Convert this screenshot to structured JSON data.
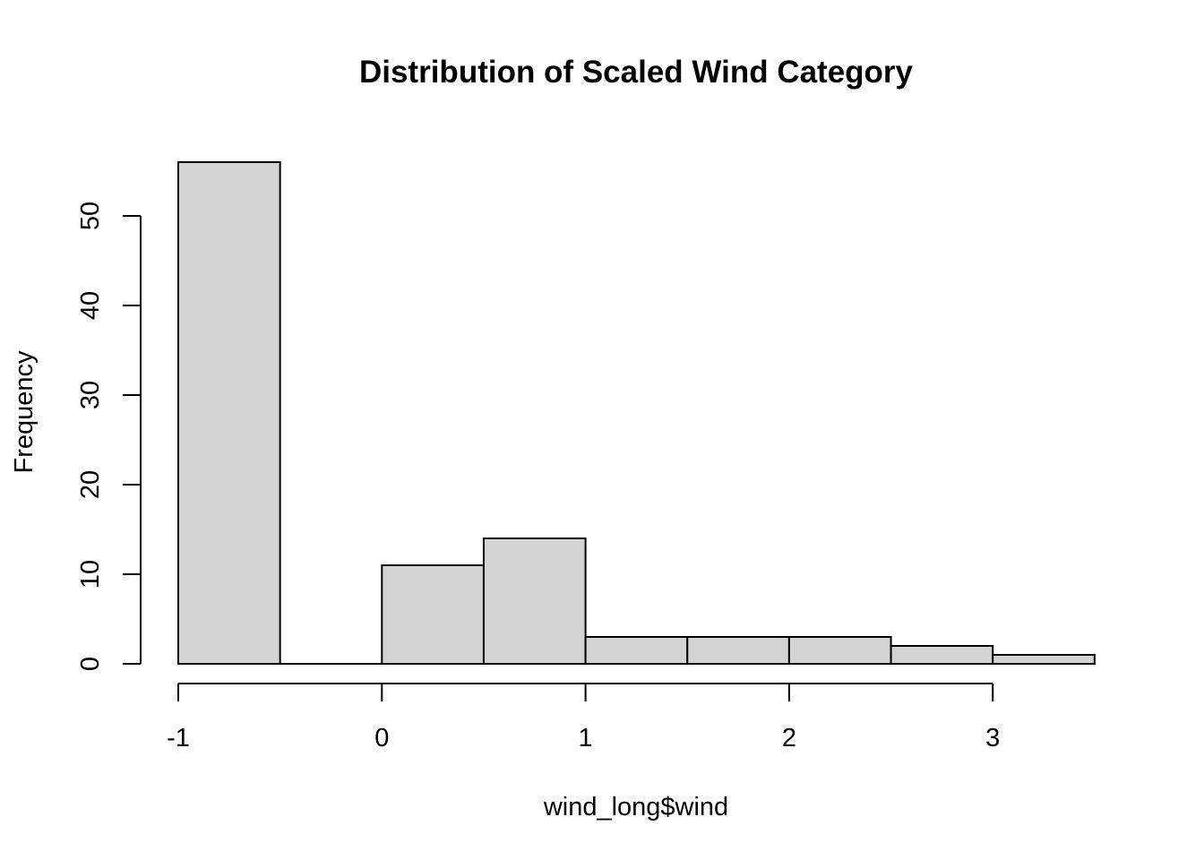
{
  "chart_data": {
    "type": "bar",
    "title": "Distribution of Scaled Wind Category",
    "xlabel": "wind_long$wind",
    "ylabel": "Frequency",
    "bins": [
      {
        "x0": -1.0,
        "x1": -0.5,
        "count": 56
      },
      {
        "x0": -0.5,
        "x1": 0.0,
        "count": 0
      },
      {
        "x0": 0.0,
        "x1": 0.5,
        "count": 11
      },
      {
        "x0": 0.5,
        "x1": 1.0,
        "count": 14
      },
      {
        "x0": 1.0,
        "x1": 1.5,
        "count": 3
      },
      {
        "x0": 1.5,
        "x1": 2.0,
        "count": 3
      },
      {
        "x0": 2.0,
        "x1": 2.5,
        "count": 3
      },
      {
        "x0": 2.5,
        "x1": 3.0,
        "count": 2
      },
      {
        "x0": 3.0,
        "x1": 3.5,
        "count": 1
      }
    ],
    "x_ticks": [
      "-1",
      "0",
      "1",
      "2",
      "3"
    ],
    "y_ticks": [
      "0",
      "10",
      "20",
      "30",
      "40",
      "50"
    ],
    "xlim": [
      -1,
      3.5
    ],
    "ylim": [
      0,
      56
    ],
    "grid": false,
    "bar_color": "#d3d3d3"
  }
}
